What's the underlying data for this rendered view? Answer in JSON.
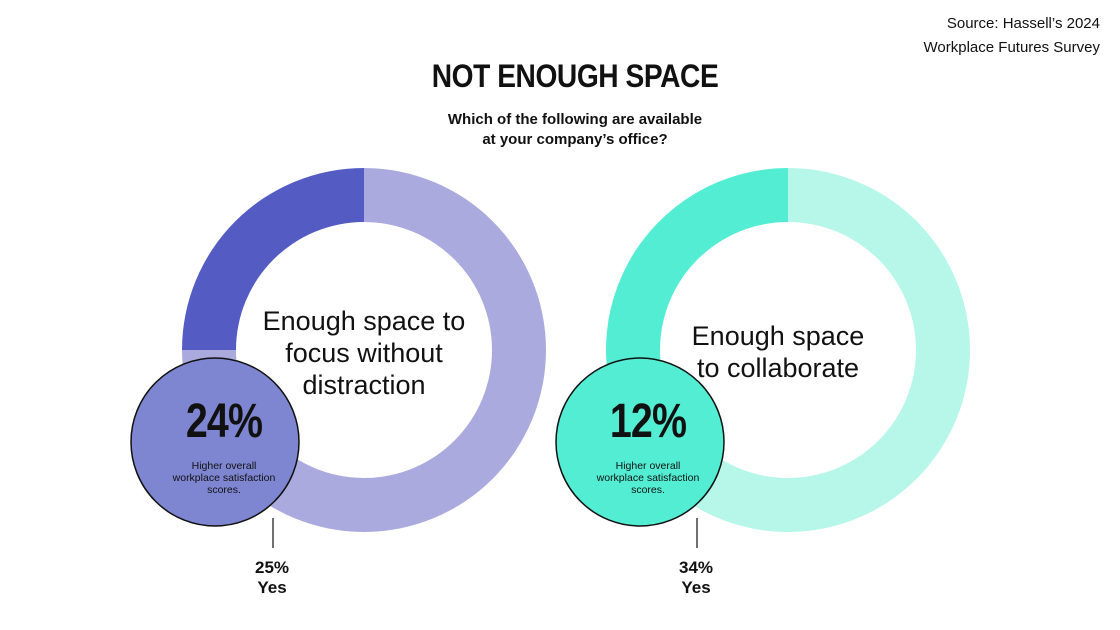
{
  "source": {
    "line1": "Source: Hassell’s 2024",
    "line2": "Workplace Futures Survey"
  },
  "title": "NOT ENOUGH SPACE",
  "subtitle": {
    "line1": "Which of the following are available",
    "line2": "at your company’s office?"
  },
  "chart_data": [
    {
      "type": "pie",
      "label": [
        "Enough space to",
        "focus without",
        "distraction"
      ],
      "yes_percent": 25,
      "yes_value_label": "25%",
      "yes_label": "Yes",
      "highlight_stat": "24%",
      "highlight_note": [
        "Higher overall",
        "workplace satisfaction",
        "scores."
      ],
      "colors": {
        "ring": "#abaade",
        "yes": "#545cc4",
        "bubble": "#7e86d2"
      }
    },
    {
      "type": "pie",
      "label": [
        "Enough space",
        "to collaborate"
      ],
      "yes_percent": 34,
      "yes_value_label": "34%",
      "yes_label": "Yes",
      "highlight_stat": "12%",
      "highlight_note": [
        "Higher overall",
        "workplace satisfaction",
        "scores."
      ],
      "colors": {
        "ring": "#b7f7e9",
        "yes": "#52edd2",
        "bubble": "#52edd2"
      }
    }
  ]
}
